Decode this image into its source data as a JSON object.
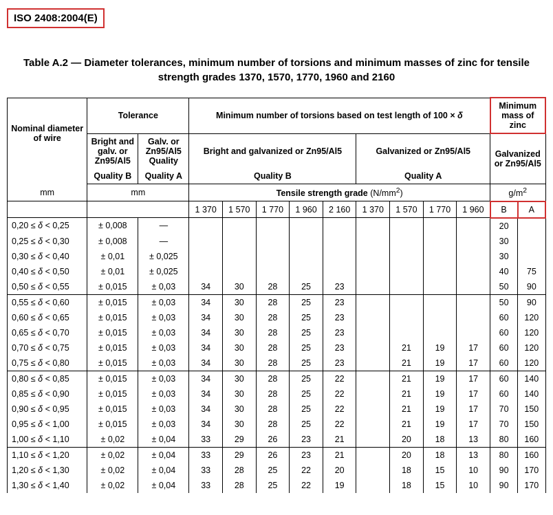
{
  "iso_label": "ISO 2408:2004(E)",
  "caption": "Table A.2 — Diameter tolerances, minimum number of torsions and minimum masses of zinc for tensile strength grades 1370, 1570, 1770, 1960 and 2160",
  "headers": {
    "nominal": "Nominal diameter of wire",
    "tolerance": "Tolerance",
    "torsions_main": "Minimum number of torsions based on test length of 100 × ",
    "delta": "δ",
    "min_mass": "Minimum mass of zinc",
    "bright_galv": "Bright and galv. or Zn95/Al5",
    "galv_quality": "Galv. or Zn95/Al5 Quality",
    "bright_galv_or": "Bright and galvanized or Zn95/Al5",
    "galv_or": "Galvanized or Zn95/Al5",
    "galv_or2": "Galvanized or Zn95/Al5",
    "qB": "Quality B",
    "qA": "Quality A",
    "mm": "mm",
    "tsg": "Tensile strength grade",
    "tsg_unit_pre": "(N/mm",
    "tsg_unit_sup": "2",
    "tsg_unit_post": ")",
    "gm2_pre": "g/m",
    "gm2_sup": "2",
    "t1370": "1 370",
    "t1570": "1 570",
    "t1770": "1 770",
    "t1960": "1 960",
    "t2160": "2 160",
    "B": "B",
    "A": "A"
  },
  "rows": [
    {
      "range": "0,20 ≤ δ < 0,25",
      "tolB": "± 0,008",
      "tolA": "—",
      "n": [
        "",
        "",
        "",
        "",
        "",
        "",
        "",
        "",
        ""
      ],
      "mB": "20",
      "mA": ""
    },
    {
      "range": "0,25 ≤ δ < 0,30",
      "tolB": "± 0,008",
      "tolA": "—",
      "n": [
        "",
        "",
        "",
        "",
        "",
        "",
        "",
        "",
        ""
      ],
      "mB": "30",
      "mA": ""
    },
    {
      "range": "0,30 ≤ δ < 0,40",
      "tolB": "± 0,01",
      "tolA": "± 0,025",
      "n": [
        "",
        "",
        "",
        "",
        "",
        "",
        "",
        "",
        ""
      ],
      "mB": "30",
      "mA": ""
    },
    {
      "range": "0,40 ≤ δ < 0,50",
      "tolB": "± 0,01",
      "tolA": "± 0,025",
      "n": [
        "",
        "",
        "",
        "",
        "",
        "",
        "",
        "",
        ""
      ],
      "mB": "40",
      "mA": "75"
    },
    {
      "range": "0,50 ≤ δ < 0,55",
      "tolB": "± 0,015",
      "tolA": "± 0,03",
      "n": [
        "34",
        "30",
        "28",
        "25",
        "23",
        "",
        "",
        "",
        ""
      ],
      "mB": "50",
      "mA": "90",
      "bottom": true
    },
    {
      "range": "0,55 ≤ δ < 0,60",
      "tolB": "± 0,015",
      "tolA": "± 0,03",
      "n": [
        "34",
        "30",
        "28",
        "25",
        "23",
        "",
        "",
        "",
        ""
      ],
      "mB": "50",
      "mA": "90"
    },
    {
      "range": "0,60 ≤ δ < 0,65",
      "tolB": "± 0,015",
      "tolA": "± 0,03",
      "n": [
        "34",
        "30",
        "28",
        "25",
        "23",
        "",
        "",
        "",
        ""
      ],
      "mB": "60",
      "mA": "120"
    },
    {
      "range": "0,65 ≤ δ < 0,70",
      "tolB": "± 0,015",
      "tolA": "± 0,03",
      "n": [
        "34",
        "30",
        "28",
        "25",
        "23",
        "",
        "",
        "",
        ""
      ],
      "mB": "60",
      "mA": "120"
    },
    {
      "range": "0,70 ≤ δ < 0,75",
      "tolB": "± 0,015",
      "tolA": "± 0,03",
      "n": [
        "34",
        "30",
        "28",
        "25",
        "23",
        "",
        "21",
        "19",
        "17"
      ],
      "mB": "60",
      "mA": "120"
    },
    {
      "range": "0,75 ≤ δ < 0,80",
      "tolB": "± 0,015",
      "tolA": "± 0,03",
      "n": [
        "34",
        "30",
        "28",
        "25",
        "23",
        "",
        "21",
        "19",
        "17"
      ],
      "mB": "60",
      "mA": "120",
      "bottom": true
    },
    {
      "range": "0,80 ≤ δ < 0,85",
      "tolB": "± 0,015",
      "tolA": "± 0,03",
      "n": [
        "34",
        "30",
        "28",
        "25",
        "22",
        "",
        "21",
        "19",
        "17"
      ],
      "mB": "60",
      "mA": "140"
    },
    {
      "range": "0,85 ≤ δ < 0,90",
      "tolB": "± 0,015",
      "tolA": "± 0,03",
      "n": [
        "34",
        "30",
        "28",
        "25",
        "22",
        "",
        "21",
        "19",
        "17"
      ],
      "mB": "60",
      "mA": "140"
    },
    {
      "range": "0,90 ≤ δ < 0,95",
      "tolB": "± 0,015",
      "tolA": "± 0,03",
      "n": [
        "34",
        "30",
        "28",
        "25",
        "22",
        "",
        "21",
        "19",
        "17"
      ],
      "mB": "70",
      "mA": "150"
    },
    {
      "range": "0,95 ≤ δ < 1,00",
      "tolB": "± 0,015",
      "tolA": "± 0,03",
      "n": [
        "34",
        "30",
        "28",
        "25",
        "22",
        "",
        "21",
        "19",
        "17"
      ],
      "mB": "70",
      "mA": "150"
    },
    {
      "range": "1,00 ≤ δ < 1,10",
      "tolB": "± 0,02",
      "tolA": "± 0,04",
      "n": [
        "33",
        "29",
        "26",
        "23",
        "21",
        "",
        "20",
        "18",
        "13"
      ],
      "mB": "80",
      "mA": "160",
      "bottom": true
    },
    {
      "range": "1,10 ≤ δ < 1,20",
      "tolB": "± 0,02",
      "tolA": "± 0,04",
      "n": [
        "33",
        "29",
        "26",
        "23",
        "21",
        "",
        "20",
        "18",
        "13"
      ],
      "mB": "80",
      "mA": "160"
    },
    {
      "range": "1,20 ≤ δ < 1,30",
      "tolB": "± 0,02",
      "tolA": "± 0,04",
      "n": [
        "33",
        "28",
        "25",
        "22",
        "20",
        "",
        "18",
        "15",
        "10"
      ],
      "mB": "90",
      "mA": "170"
    },
    {
      "range": "1,30 ≤ δ < 1,40",
      "tolB": "± 0,02",
      "tolA": "± 0,04",
      "n": [
        "33",
        "28",
        "25",
        "22",
        "19",
        "",
        "18",
        "15",
        "10"
      ],
      "mB": "90",
      "mA": "170"
    }
  ]
}
